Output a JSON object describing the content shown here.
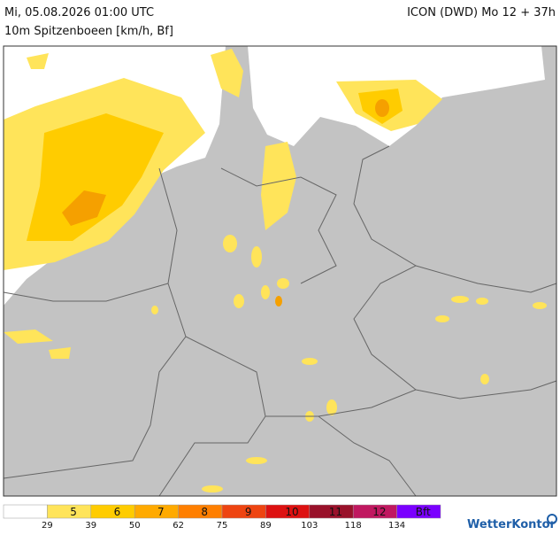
{
  "header": {
    "datetime": "Mi, 05.08.2026 01:00 UTC",
    "parameter": "10m Spitzenboeen [km/h, Bf]",
    "model": "ICON (DWD) Mo 12 + 37h"
  },
  "legend": {
    "bf_labels": [
      "5",
      "6",
      "7",
      "8",
      "9",
      "10",
      "11",
      "12",
      "Bft"
    ],
    "colors": [
      "#ffffff",
      "#ffe45a",
      "#ffcc00",
      "#ffaa00",
      "#ff7f00",
      "#ee4411",
      "#dd1111",
      "#99112a",
      "#c01860",
      "#7a00ff"
    ],
    "kmh_ticks": [
      "29",
      "39",
      "50",
      "62",
      "75",
      "89",
      "103",
      "118",
      "134"
    ]
  },
  "logo": "WetterKontor"
}
